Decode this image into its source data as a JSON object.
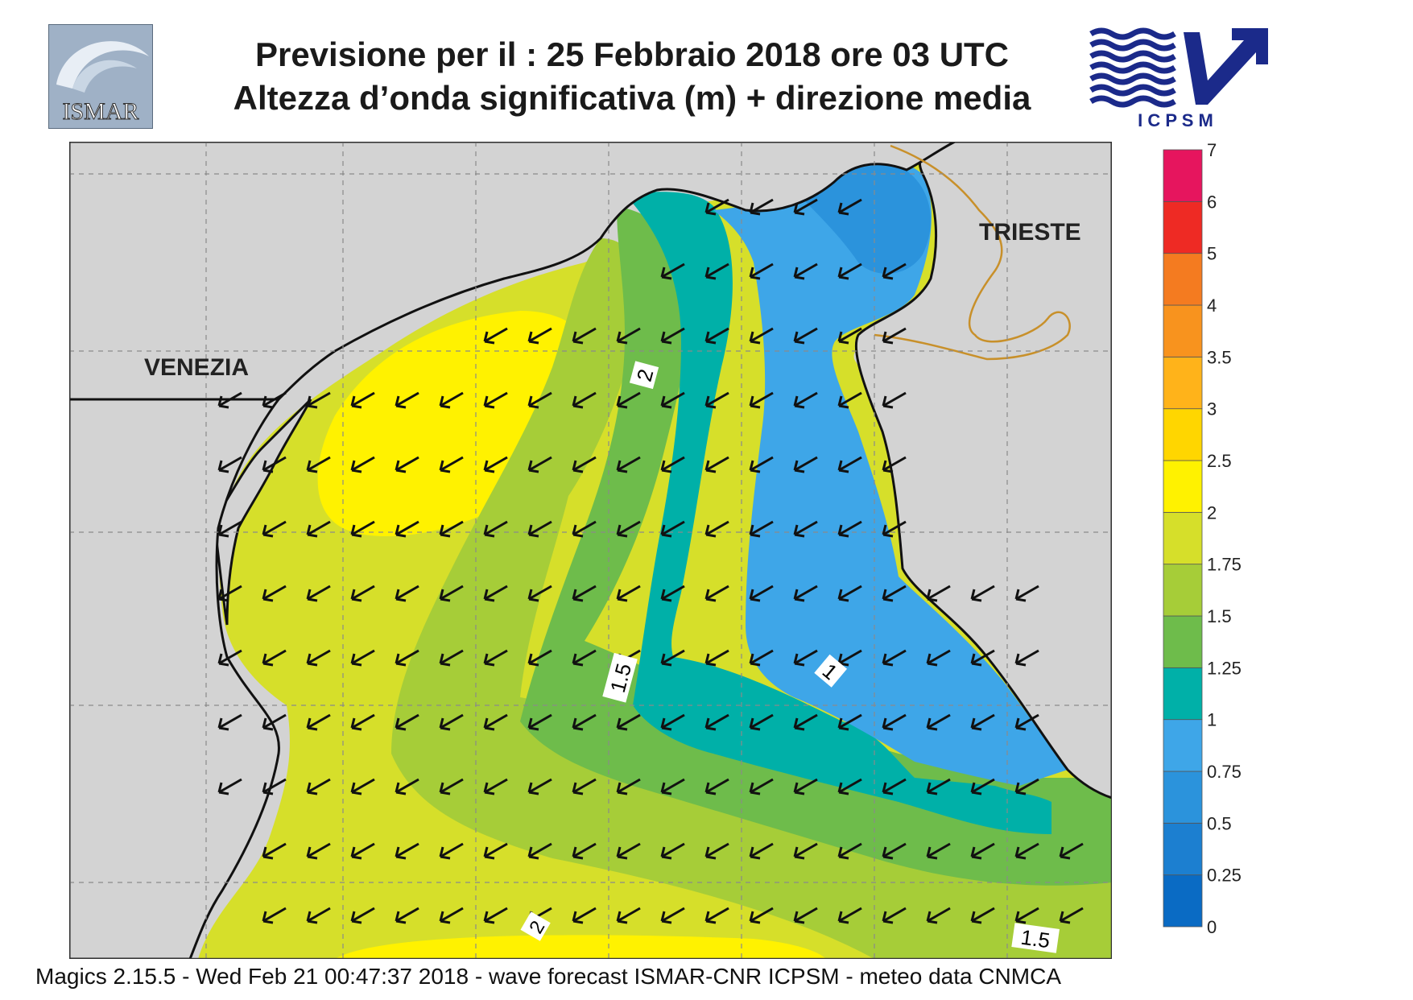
{
  "header": {
    "title_line1": "Previsione per il  :  25  Febbraio 2018   ore 03 UTC",
    "title_line2": "Altezza d’onda significativa (m) + direzione media"
  },
  "logos": {
    "left": {
      "icon": "ismar-logo",
      "text": "ISMAR"
    },
    "right": {
      "icon": "icpsm-logo",
      "text": "I C P S M"
    }
  },
  "map": {
    "places": [
      "VENEZIA",
      "TRIESTE"
    ],
    "contour_labels": [
      "2",
      "1.5",
      "1",
      "2",
      "1.5"
    ],
    "arrow_direction": "south-west",
    "colors": {
      "land": "#d3d3d3",
      "coast": "#111111",
      "grid": "#8a8a8a",
      "border": "#c8902a",
      "arrow": "#111111"
    }
  },
  "colorbar": {
    "levels": [
      "0",
      "0.25",
      "0.5",
      "0.75",
      "1",
      "1.25",
      "1.5",
      "1.75",
      "2",
      "2.5",
      "3",
      "3.5",
      "4",
      "5",
      "6",
      "7"
    ],
    "colors": [
      "#0a6bc4",
      "#1c7fd0",
      "#2b93dc",
      "#3ea6e8",
      "#00b0a8",
      "#6ebc4b",
      "#a6cd38",
      "#d6df2a",
      "#fff200",
      "#ffd600",
      "#ffb31a",
      "#f8931e",
      "#f47b20",
      "#ee2a24",
      "#e6155e"
    ]
  },
  "footer": {
    "text": "Magics 2.15.5 - Wed Feb 21 00:47:37 2018 - wave forecast  ISMAR-CNR  ICPSM - meteo data   CNMCA"
  }
}
